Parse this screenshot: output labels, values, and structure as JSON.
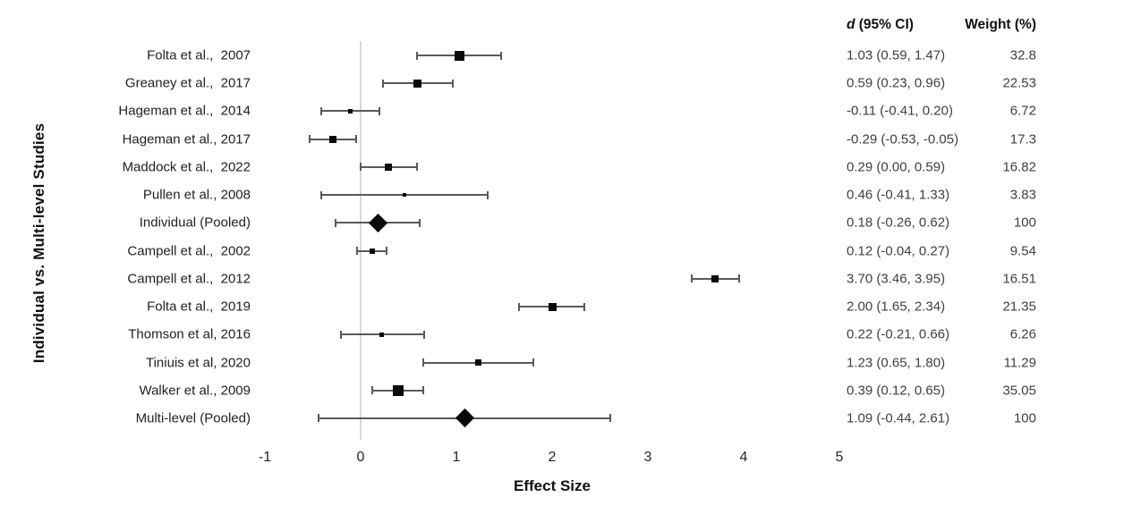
{
  "chart_data": {
    "type": "forest",
    "group_label": "Individual vs. Multi-level Studies",
    "xlabel": "Effect Size",
    "x_ticks": [
      -1,
      0,
      1,
      2,
      3,
      4,
      5
    ],
    "xlim": [
      -1.1,
      5.2
    ],
    "grid": false,
    "legend": "none",
    "zero_reference_line": 0,
    "columns": {
      "effect_symbol": "d",
      "effect_rest": " (95% CI)",
      "weight": "Weight (%)"
    },
    "colors": {
      "error_bar": "#595959",
      "marker": "#0a0a0a",
      "zero_line": "#d9d9d9",
      "text_values": "#3f3f3f",
      "text_labels": "#1f1f1f"
    },
    "studies": [
      {
        "label": "Folta et al.,  2007",
        "d": 1.03,
        "lo": 0.59,
        "hi": 1.47,
        "ci_text": "1.03 (0.59, 1.47)",
        "weight": 32.8,
        "weight_text": "32.8",
        "pooled": false
      },
      {
        "label": "Greaney et al.,  2017",
        "d": 0.59,
        "lo": 0.23,
        "hi": 0.96,
        "ci_text": "0.59 (0.23, 0.96)",
        "weight": 22.53,
        "weight_text": "22.53",
        "pooled": false
      },
      {
        "label": "Hageman et al.,  2014",
        "d": -0.11,
        "lo": -0.41,
        "hi": 0.2,
        "ci_text": "-0.11 (-0.41, 0.20)",
        "weight": 6.72,
        "weight_text": "6.72",
        "pooled": false
      },
      {
        "label": "Hageman et al., 2017",
        "d": -0.29,
        "lo": -0.53,
        "hi": -0.05,
        "ci_text": "-0.29 (-0.53, -0.05)",
        "weight": 17.3,
        "weight_text": "17.3",
        "pooled": false
      },
      {
        "label": "Maddock et al.,  2022",
        "d": 0.29,
        "lo": 0.0,
        "hi": 0.59,
        "ci_text": "0.29 (0.00, 0.59)",
        "weight": 16.82,
        "weight_text": "16.82",
        "pooled": false
      },
      {
        "label": "Pullen et al., 2008",
        "d": 0.46,
        "lo": -0.41,
        "hi": 1.33,
        "ci_text": "0.46 (-0.41, 1.33)",
        "weight": 3.83,
        "weight_text": "3.83",
        "pooled": false
      },
      {
        "label": "Individual (Pooled)",
        "d": 0.18,
        "lo": -0.26,
        "hi": 0.62,
        "ci_text": "0.18 (-0.26, 0.62)",
        "weight": 100,
        "weight_text": "100",
        "pooled": true
      },
      {
        "label": "Campell et al.,  2002",
        "d": 0.12,
        "lo": -0.04,
        "hi": 0.27,
        "ci_text": "0.12 (-0.04, 0.27)",
        "weight": 9.54,
        "weight_text": "9.54",
        "pooled": false
      },
      {
        "label": "Campell et al.,  2012",
        "d": 3.7,
        "lo": 3.46,
        "hi": 3.95,
        "ci_text": "3.70 (3.46, 3.95)",
        "weight": 16.51,
        "weight_text": "16.51",
        "pooled": false
      },
      {
        "label": "Folta et al.,  2019",
        "d": 2.0,
        "lo": 1.65,
        "hi": 2.34,
        "ci_text": "2.00 (1.65, 2.34)",
        "weight": 21.35,
        "weight_text": "21.35",
        "pooled": false
      },
      {
        "label": "Thomson et al, 2016",
        "d": 0.22,
        "lo": -0.21,
        "hi": 0.66,
        "ci_text": "0.22 (-0.21, 0.66)",
        "weight": 6.26,
        "weight_text": "6.26",
        "pooled": false
      },
      {
        "label": "Tiniuis et al, 2020",
        "d": 1.23,
        "lo": 0.65,
        "hi": 1.8,
        "ci_text": "1.23 (0.65, 1.80)",
        "weight": 11.29,
        "weight_text": "11.29",
        "pooled": false
      },
      {
        "label": "Walker et al., 2009",
        "d": 0.39,
        "lo": 0.12,
        "hi": 0.65,
        "ci_text": "0.39 (0.12, 0.65)",
        "weight": 35.05,
        "weight_text": "35.05",
        "pooled": false
      },
      {
        "label": "Multi-level (Pooled)",
        "d": 1.09,
        "lo": -0.44,
        "hi": 2.61,
        "ci_text": "1.09 (-0.44, 2.61)",
        "weight": 100,
        "weight_text": "100",
        "pooled": true
      }
    ]
  }
}
